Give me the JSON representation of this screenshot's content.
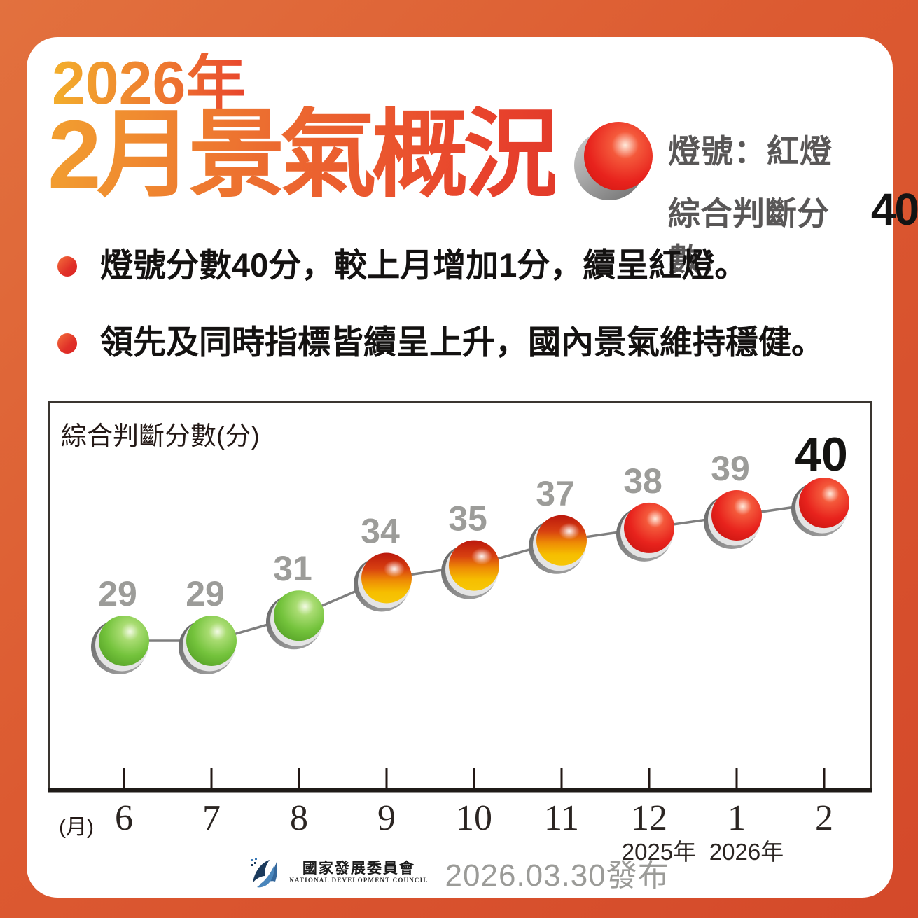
{
  "frame": {
    "border_gradient": [
      "#E2713E",
      "#D4492A"
    ],
    "panel_color": "#FFFFFF"
  },
  "header": {
    "year": "2026年",
    "title": "2月景氣概況",
    "light_status_label": "燈號：紅燈",
    "score_label": "綜合判斷分數：",
    "score_value": "40",
    "light_color": "#E8231D"
  },
  "bullets": [
    "燈號分數40分，較上月增加1分，續呈紅燈。",
    "領先及同時指標皆續呈上升，國內景氣維持穩健。"
  ],
  "chart_data": {
    "type": "line",
    "title": "綜合判斷分數(分)",
    "x_unit_label": "(月)",
    "x": [
      "6",
      "7",
      "8",
      "9",
      "10",
      "11",
      "12",
      "1",
      "2"
    ],
    "values": [
      29,
      29,
      31,
      34,
      35,
      37,
      38,
      39,
      40
    ],
    "light_types": [
      "green",
      "green",
      "green",
      "yellow-red",
      "yellow-red",
      "yellow-red",
      "red",
      "red",
      "red"
    ],
    "year_markers": [
      {
        "month_index": 6,
        "label": "2025年"
      },
      {
        "month_index": 7,
        "label": "2026年"
      }
    ],
    "ylim": [
      26,
      44
    ],
    "grid": false,
    "emphasized_last_point": true,
    "value_label_color": "#9C9C99",
    "emphasized_label_color": "#141311",
    "colors": {
      "green_light": "#74C33C",
      "yellow_red_light_top": "#BF1A0E",
      "yellow_red_light_bottom": "#F8C900",
      "red_light": "#E8231D",
      "line": "#7F7F7F"
    }
  },
  "footer": {
    "org_name_zh": "國家發展委員會",
    "org_name_en": "NATIONAL DEVELOPMENT COUNCIL",
    "publish_date": "2026.03.30發布"
  }
}
